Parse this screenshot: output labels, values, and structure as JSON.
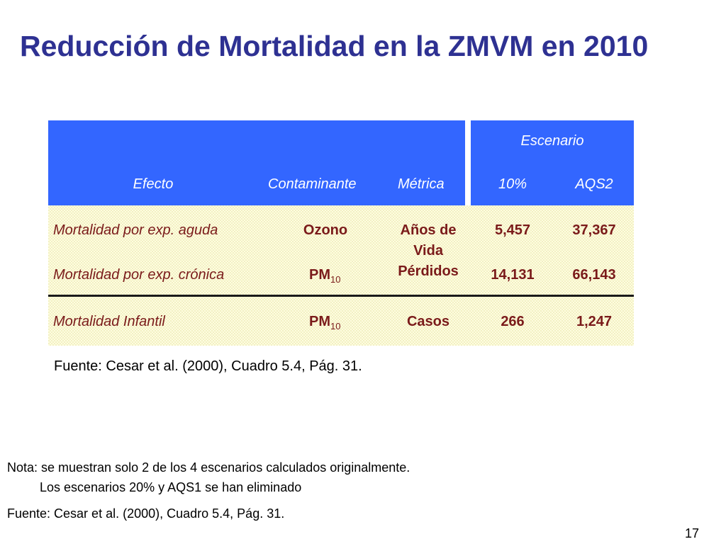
{
  "slide": {
    "title": "Reducción de Mortalidad en la ZMVM en 2010",
    "page_number": "17"
  },
  "table": {
    "header": {
      "group_label": "Escenario",
      "efecto": "Efecto",
      "contaminante": "Contaminante",
      "metrica": "Métrica",
      "scenario_1": "10%",
      "scenario_2": "AQS2"
    },
    "rows": [
      {
        "efecto": "Mortalidad por exp. aguda",
        "contaminante": "Ozono",
        "contaminante_sub": "",
        "v1": "5,457",
        "v2": "37,367"
      },
      {
        "efecto": "Mortalidad por exp. crónica",
        "contaminante": "PM",
        "contaminante_sub": "10",
        "v1": "14,131",
        "v2": "66,143"
      },
      {
        "efecto": "Mortalidad Infantil",
        "contaminante": "PM",
        "contaminante_sub": "10",
        "metrica": "Casos",
        "v1": "266",
        "v2": "1,247"
      }
    ],
    "metrica_merged": {
      "line1": "Años de",
      "line2": "Vida",
      "line3": "Pérdidos"
    }
  },
  "source_caption": "Fuente: Cesar et al. (2000), Cuadro 5.4, Pág. 31.",
  "notes": {
    "line1": "Nota: se muestran solo 2 de los 4 escenarios calculados originalmente.",
    "line2": "Los escenarios 20% y AQS1 se han eliminado",
    "source": "Fuente: Cesar et al. (2000), Cuadro 5.4, Pág. 31."
  }
}
